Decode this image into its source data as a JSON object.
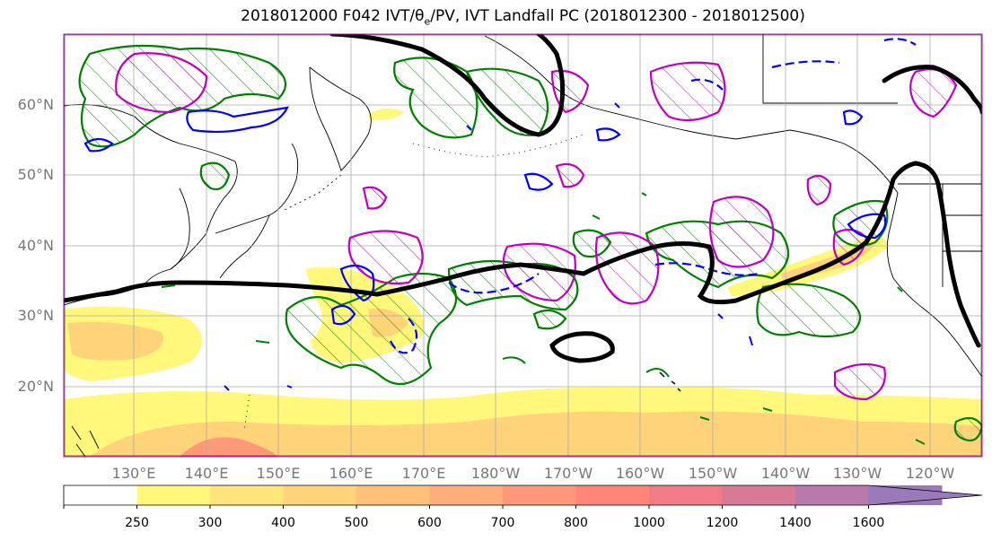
{
  "title": {
    "prefix": "2018012000 F042 IVT/θ",
    "sub": "e",
    "suffix": "/PV, IVT Landfall PC (2018012300 - 2018012500)"
  },
  "lat_labels": [
    "60°N",
    "50°N",
    "40°N",
    "30°N",
    "20°N"
  ],
  "lon_labels": [
    "130°E",
    "140°E",
    "150°E",
    "160°E",
    "170°E",
    "180°W",
    "170°W",
    "160°W",
    "150°W",
    "140°W",
    "130°W",
    "120°W"
  ],
  "colorbar": {
    "ticks": [
      "250",
      "300",
      "400",
      "500",
      "600",
      "700",
      "800",
      "1000",
      "1200",
      "1400",
      "1600"
    ],
    "colors": [
      "#ffffff",
      "#fff87a",
      "#ffe57a",
      "#ffd37a",
      "#ffc17a",
      "#ffad7a",
      "#ff997a",
      "#ff857a",
      "#f07a85",
      "#d87a95",
      "#b87aaa",
      "#9a7ab8"
    ]
  },
  "colors": {
    "ivt_low": "#fff87a",
    "ivt_mid": "#ffd37a",
    "ivt_high": "#ff997a",
    "theta_e": "#000000",
    "pv_green": "#008000",
    "pv_blue": "#0000ff",
    "pv_magenta": "#c000c0",
    "grid": "#aaaaaa",
    "coast": "#000000"
  }
}
